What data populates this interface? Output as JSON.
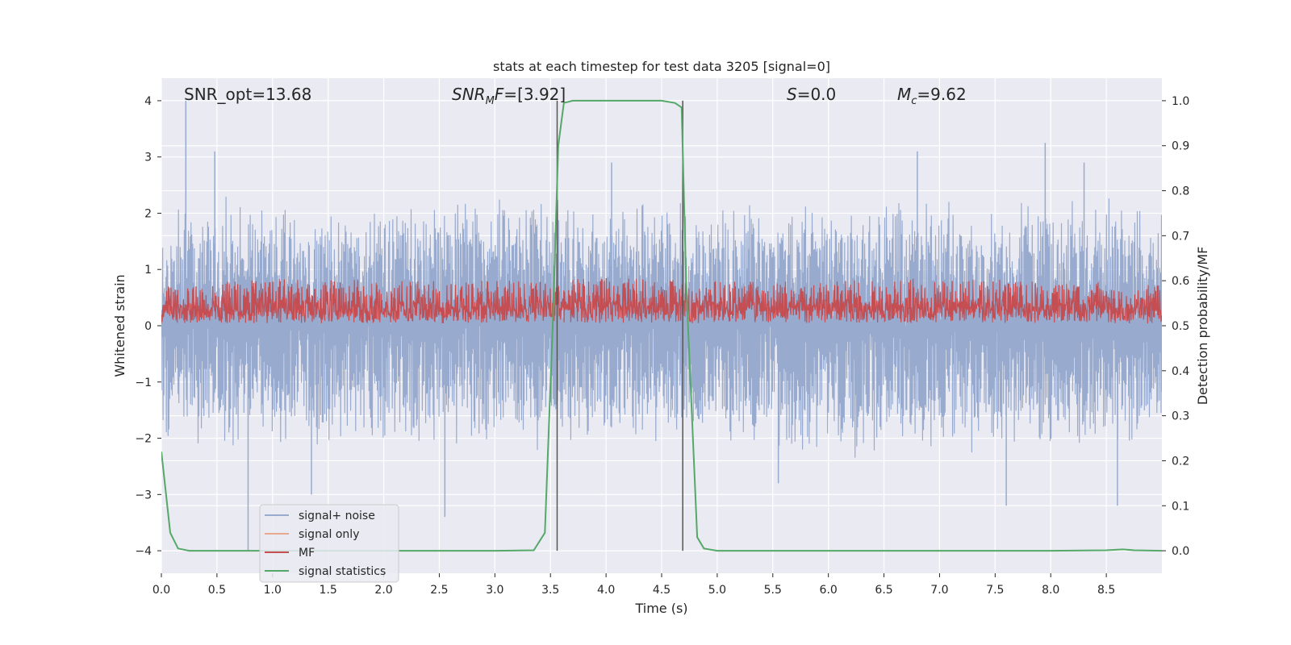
{
  "chart_data": {
    "type": "line",
    "title": "stats at each timestep for test data 3205 [signal=0]",
    "xlabel": "Time (s)",
    "ylabel_left": "Whitened strain",
    "ylabel_right": "Detection probability/MF",
    "xlim": [
      0,
      9.0
    ],
    "ylim_left": [
      -4.4,
      4.4
    ],
    "ylim_right": [
      -0.05,
      1.05
    ],
    "x_ticks": [
      0.0,
      0.5,
      1.0,
      1.5,
      2.0,
      2.5,
      3.0,
      3.5,
      4.0,
      4.5,
      5.0,
      5.5,
      6.0,
      6.5,
      7.0,
      7.5,
      8.0,
      8.5
    ],
    "x_tick_labels": [
      "0.0",
      "0.5",
      "1.0",
      "1.5",
      "2.0",
      "2.5",
      "3.0",
      "3.5",
      "4.0",
      "4.5",
      "5.0",
      "5.5",
      "6.0",
      "6.5",
      "7.0",
      "7.5",
      "8.0",
      "8.5"
    ],
    "y_ticks_left": [
      4,
      3,
      2,
      1,
      0,
      -1,
      -2,
      -3,
      -4
    ],
    "y_tick_labels_left": [
      "4",
      "3",
      "2",
      "1",
      "0",
      "−1",
      "−2",
      "−3",
      "−4"
    ],
    "y_ticks_right": [
      1.0,
      0.9,
      0.8,
      0.7,
      0.6,
      0.5,
      0.4,
      0.3,
      0.2,
      0.1,
      0.0
    ],
    "y_tick_labels_right": [
      "1.0",
      "0.9",
      "0.8",
      "0.7",
      "0.6",
      "0.5",
      "0.4",
      "0.3",
      "0.2",
      "0.1",
      "0.0"
    ],
    "grid": true,
    "legend_position": "lower-left",
    "annotations": {
      "snr_opt": "SNR_opt=13.68",
      "snr_mf": "[3.92]",
      "s_value": "=0.0",
      "mc_value": "=9.62"
    },
    "noise_envelope": {
      "x": [
        0.0,
        0.5,
        1.0,
        1.5,
        2.0,
        2.5,
        3.0,
        3.5,
        4.0,
        4.5,
        5.0,
        5.5,
        6.0,
        6.5,
        7.0,
        7.5,
        8.0,
        8.5,
        9.0
      ],
      "max": [
        2.1,
        2.4,
        2.2,
        2.3,
        2.0,
        2.4,
        2.5,
        2.3,
        2.2,
        2.5,
        2.2,
        2.4,
        2.1,
        2.3,
        2.4,
        2.2,
        2.5,
        2.3,
        2.1
      ],
      "min": [
        -2.0,
        -2.3,
        -2.2,
        -2.4,
        -2.1,
        -2.3,
        -2.2,
        -2.3,
        -2.2,
        -2.1,
        -2.2,
        -2.3,
        -2.4,
        -2.5,
        -2.3,
        -2.4,
        -2.3,
        -2.4,
        -2.2
      ],
      "spike_x": [
        0.22,
        0.48,
        0.78,
        1.35,
        2.55,
        4.05,
        5.55,
        6.8,
        7.6,
        7.95,
        8.3,
        8.6
      ],
      "spike_y": [
        4.0,
        3.1,
        -4.0,
        -3.0,
        -3.4,
        2.9,
        -2.8,
        3.1,
        -3.2,
        3.25,
        2.9,
        -3.2
      ]
    },
    "mf_band": {
      "x": [
        0.0,
        1.0,
        2.0,
        3.0,
        4.0,
        5.0,
        6.0,
        7.0,
        8.0,
        9.0
      ],
      "max": [
        0.7,
        0.85,
        0.8,
        0.8,
        0.85,
        0.8,
        0.8,
        0.85,
        0.8,
        0.75
      ],
      "min": [
        0.0,
        0.0,
        0.0,
        0.0,
        0.0,
        0.0,
        0.0,
        0.0,
        0.0,
        0.0
      ]
    },
    "vertical_markers": [
      3.56,
      4.69
    ],
    "series": [
      {
        "name": "signal statistics",
        "color": "#55a868",
        "x": [
          0.0,
          0.08,
          0.15,
          0.25,
          0.5,
          1.0,
          2.0,
          3.0,
          3.35,
          3.45,
          3.52,
          3.57,
          3.62,
          3.7,
          4.0,
          4.5,
          4.62,
          4.68,
          4.72,
          4.82,
          4.88,
          5.0,
          6.0,
          7.0,
          8.0,
          8.5,
          8.65,
          8.75,
          9.0
        ],
        "y": [
          0.22,
          0.04,
          0.005,
          0.0,
          0.0,
          0.0,
          0.0,
          0.0,
          0.001,
          0.04,
          0.5,
          0.9,
          0.995,
          1.0,
          1.0,
          1.0,
          0.995,
          0.985,
          0.6,
          0.03,
          0.005,
          0.0,
          0.0,
          0.0,
          0.0,
          0.001,
          0.003,
          0.001,
          0.0
        ]
      }
    ],
    "legend": [
      {
        "name": "signal+ noise",
        "color": "#98abcf"
      },
      {
        "name": "signal only",
        "color": "#e8a98f"
      },
      {
        "name": "MF",
        "color": "#c44e52"
      },
      {
        "name": "signal statistics",
        "color": "#55a868"
      }
    ],
    "colors": {
      "plot_background": "#eaeaf2",
      "grid": "#ffffff",
      "noise": "#98abcf",
      "mf": "#c44e52",
      "marker_line": "#555555"
    }
  }
}
